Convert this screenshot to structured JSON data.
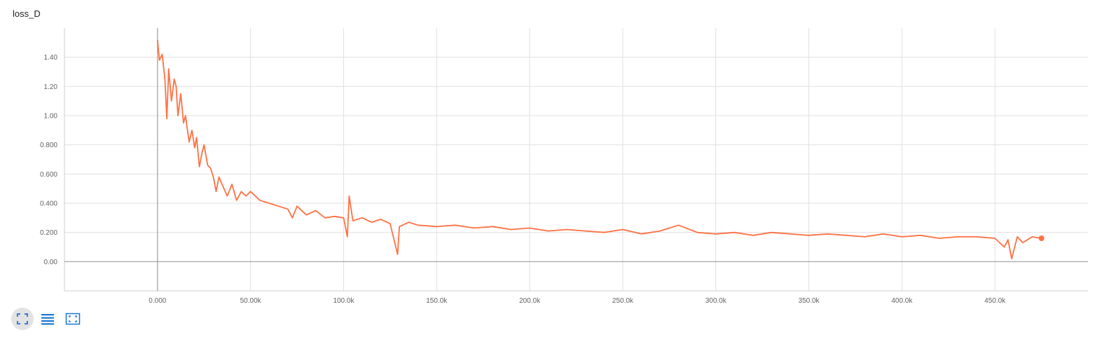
{
  "toolbar": {
    "buttons": [
      {
        "icon": "fullscreen-icon",
        "active": true
      },
      {
        "icon": "lines-icon",
        "active": false
      },
      {
        "icon": "fit-domain-icon",
        "active": false
      }
    ],
    "icon_color": "#1976d2"
  },
  "chart_data": {
    "type": "line",
    "title": "loss_D",
    "xlabel": "",
    "ylabel": "",
    "xlim": [
      -50000,
      500000
    ],
    "ylim": [
      -0.2,
      1.6
    ],
    "x_ticks": [
      0,
      50000,
      100000,
      150000,
      200000,
      250000,
      300000,
      350000,
      400000,
      450000
    ],
    "x_tick_labels": [
      "0.000",
      "50.00k",
      "100.0k",
      "150.0k",
      "200.0k",
      "250.0k",
      "300.0k",
      "350.0k",
      "400.0k",
      "450.0k"
    ],
    "y_ticks": [
      0,
      0.2,
      0.4,
      0.6,
      0.8,
      1.0,
      1.2,
      1.4
    ],
    "y_tick_labels": [
      "0.00",
      "0.200",
      "0.400",
      "0.600",
      "0.800",
      "1.00",
      "1.20",
      "1.40"
    ],
    "grid": true,
    "legend": "none",
    "series": [
      {
        "color": "#ff7043",
        "x": [
          0,
          1000,
          2500,
          4000,
          5000,
          6000,
          7500,
          9000,
          10000,
          11000,
          12500,
          14000,
          15000,
          17000,
          18500,
          20000,
          21000,
          22500,
          24000,
          25000,
          27000,
          28500,
          30000,
          31500,
          33000,
          35000,
          37500,
          40000,
          42500,
          45000,
          47500,
          50000,
          55000,
          60000,
          65000,
          70000,
          72500,
          75000,
          80000,
          85000,
          90000,
          95000,
          100000,
          102000,
          103000,
          105000,
          110000,
          115000,
          120000,
          125000,
          129000,
          130000,
          135000,
          140000,
          150000,
          160000,
          170000,
          180000,
          190000,
          200000,
          210000,
          220000,
          230000,
          240000,
          250000,
          260000,
          270000,
          280000,
          290000,
          300000,
          310000,
          320000,
          330000,
          340000,
          350000,
          360000,
          370000,
          380000,
          390000,
          400000,
          410000,
          420000,
          430000,
          440000,
          450000,
          455000,
          457000,
          459000,
          462000,
          465000,
          470000,
          475000
        ],
        "y": [
          1.52,
          1.38,
          1.42,
          1.25,
          0.98,
          1.32,
          1.1,
          1.25,
          1.2,
          1.0,
          1.15,
          0.95,
          1.0,
          0.82,
          0.9,
          0.78,
          0.85,
          0.65,
          0.75,
          0.8,
          0.66,
          0.64,
          0.58,
          0.48,
          0.58,
          0.52,
          0.45,
          0.53,
          0.42,
          0.48,
          0.45,
          0.48,
          0.42,
          0.4,
          0.38,
          0.36,
          0.3,
          0.38,
          0.32,
          0.35,
          0.3,
          0.31,
          0.3,
          0.17,
          0.45,
          0.28,
          0.3,
          0.27,
          0.29,
          0.26,
          0.05,
          0.24,
          0.27,
          0.25,
          0.24,
          0.25,
          0.23,
          0.24,
          0.22,
          0.23,
          0.21,
          0.22,
          0.21,
          0.2,
          0.22,
          0.19,
          0.21,
          0.25,
          0.2,
          0.19,
          0.2,
          0.18,
          0.2,
          0.19,
          0.18,
          0.19,
          0.18,
          0.17,
          0.19,
          0.17,
          0.18,
          0.16,
          0.17,
          0.17,
          0.16,
          0.1,
          0.15,
          0.02,
          0.17,
          0.13,
          0.17,
          0.16
        ]
      }
    ]
  }
}
